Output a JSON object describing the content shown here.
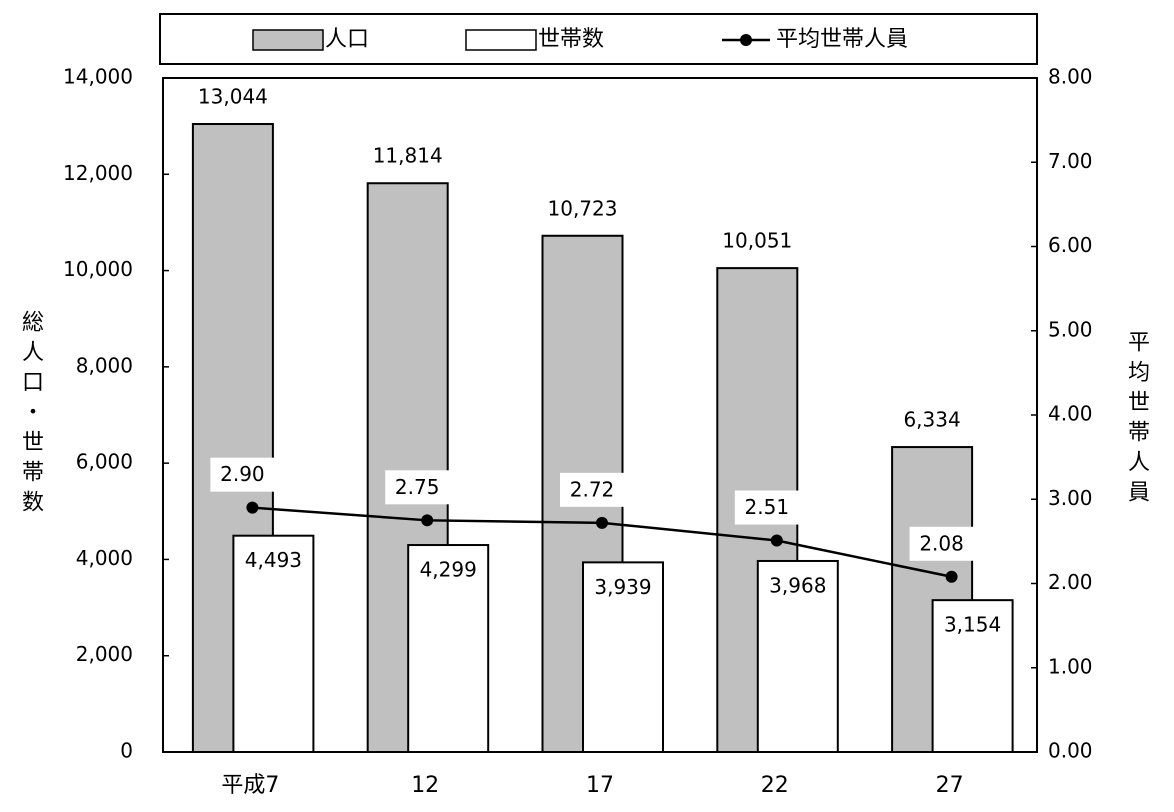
{
  "chart_data": {
    "type": "bar",
    "y_label": "総人口・世帯数",
    "y2_label": "平均世帯人員",
    "categories": [
      "平成7",
      "12",
      "17",
      "22",
      "27"
    ],
    "series": [
      {
        "name": "人口",
        "color": "#c0c0c0",
        "values": [
          13044,
          11814,
          10723,
          10051,
          6334
        ],
        "value_labels": [
          "13,044",
          "11,814",
          "10,723",
          "10,051",
          "6,334"
        ]
      },
      {
        "name": "世帯数",
        "color": "#ffffff",
        "values": [
          4493,
          4299,
          3939,
          3968,
          3154
        ],
        "value_labels": [
          "4,493",
          "4,299",
          "3,939",
          "3,968",
          "3,154"
        ]
      },
      {
        "name": "平均世帯人員",
        "type": "line",
        "axis": "y2",
        "color": "#000000",
        "values": [
          2.9,
          2.75,
          2.72,
          2.51,
          2.08
        ],
        "value_labels": [
          "2.90",
          "2.75",
          "2.72",
          "2.51",
          "2.08"
        ]
      }
    ],
    "ylim": [
      0,
      14000
    ],
    "yticks": [
      0,
      {
        "value": 2000,
        "label": "2,000"
      },
      {
        "value": 4000,
        "label": "4,000"
      },
      {
        "value": 6000,
        "label": "6,000"
      },
      {
        "value": 8000,
        "label": "8,000"
      },
      {
        "value": 10000,
        "label": "10,000"
      },
      {
        "value": 12000,
        "label": "12,000"
      },
      {
        "value": 14000,
        "label": "14,000"
      }
    ],
    "y2lim": [
      0,
      8
    ],
    "y2ticks": [
      {
        "value": 0,
        "label": "0.00"
      },
      {
        "value": 1,
        "label": "1.00"
      },
      {
        "value": 2,
        "label": "2.00"
      },
      {
        "value": 3,
        "label": "3.00"
      },
      {
        "value": 4,
        "label": "4.00"
      },
      {
        "value": 5,
        "label": "5.00"
      },
      {
        "value": 6,
        "label": "6.00"
      },
      {
        "value": 7,
        "label": "7.00"
      },
      {
        "value": 8,
        "label": "8.00"
      }
    ],
    "legend": "top",
    "grid": false
  }
}
